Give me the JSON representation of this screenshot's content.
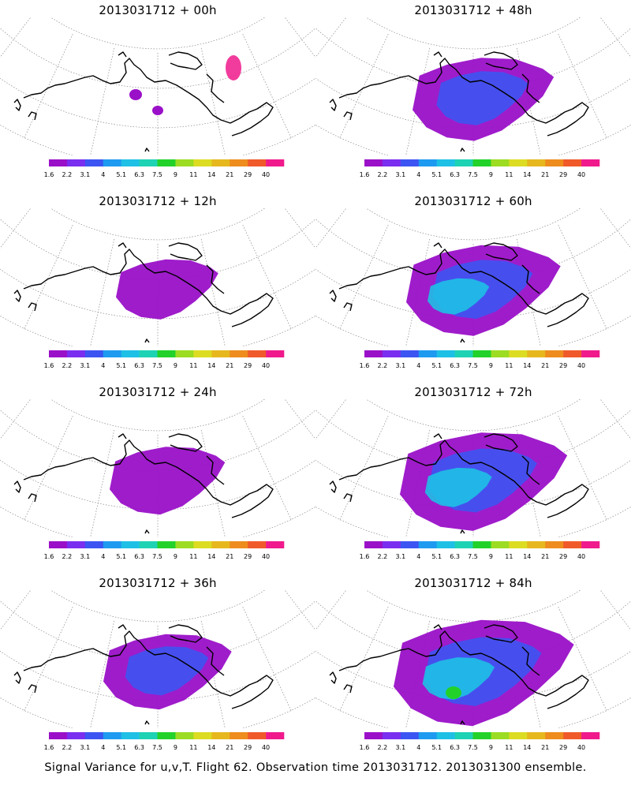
{
  "colors": {
    "palette": [
      "#9a10c8",
      "#7a2ef0",
      "#3c55f2",
      "#1e9bf0",
      "#1ec0e6",
      "#1ed2b4",
      "#22d22a",
      "#9cdc22",
      "#dcdc22",
      "#e6b81e",
      "#ee8c1e",
      "#f05a2a",
      "#f01a8c"
    ],
    "coast": "#000000",
    "grid": "#888888"
  },
  "colorbar": {
    "labels": [
      "1.6",
      "2.2",
      "3.1",
      "4",
      "5.1",
      "6.3",
      "7.5",
      "9",
      "11",
      "14",
      "21",
      "29",
      "40"
    ]
  },
  "panels": [
    {
      "title": "2013031712 + 00h",
      "level": 0
    },
    {
      "title": "2013031712 + 48h",
      "level": 4
    },
    {
      "title": "2013031712 + 12h",
      "level": 1
    },
    {
      "title": "2013031712 + 60h",
      "level": 5
    },
    {
      "title": "2013031712 + 24h",
      "level": 2
    },
    {
      "title": "2013031712 + 72h",
      "level": 6
    },
    {
      "title": "2013031712 + 36h",
      "level": 3
    },
    {
      "title": "2013031712 + 84h",
      "level": 7
    }
  ],
  "footer": {
    "caption": "Signal Variance for u,v,T. Flight 62. Observation time 2013031712. 2013031300 ensemble."
  }
}
